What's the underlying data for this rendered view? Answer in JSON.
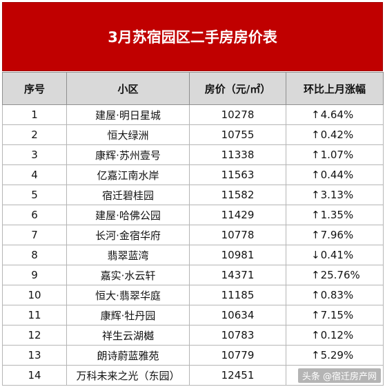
{
  "title": "3月苏宿园区二手房房价表",
  "headers": [
    "序号",
    "小区",
    "房价（元/㎡）",
    "环比上月涨幅"
  ],
  "rows": [
    {
      "no": "1",
      "name": "建屋·明日星城",
      "price": "10278",
      "arrow": "↑",
      "change": "4.64%",
      "direction": "up"
    },
    {
      "no": "2",
      "name": "恒大绿洲",
      "price": "10755",
      "arrow": "↑",
      "change": "0.42%",
      "direction": "up"
    },
    {
      "no": "3",
      "name": "康辉·苏州壹号",
      "price": "11338",
      "arrow": "↑",
      "change": "1.07%",
      "direction": "up"
    },
    {
      "no": "4",
      "name": "亿嘉江南水岸",
      "price": "11563",
      "arrow": "↑",
      "change": "0.44%",
      "direction": "up"
    },
    {
      "no": "5",
      "name": "宿迁碧桂园",
      "price": "11582",
      "arrow": "↑",
      "change": "3.13%",
      "direction": "up"
    },
    {
      "no": "6",
      "name": "建屋·哈佛公园",
      "price": "11429",
      "arrow": "↑",
      "change": "1.35%",
      "direction": "up"
    },
    {
      "no": "7",
      "name": "长河·金宿华府",
      "price": "10778",
      "arrow": "↑",
      "change": "7.96%",
      "direction": "up"
    },
    {
      "no": "8",
      "name": "翡翠蓝湾",
      "price": "10981",
      "arrow": "↓",
      "change": "0.41%",
      "direction": "down"
    },
    {
      "no": "9",
      "name": "嘉实·水云轩",
      "price": "14371",
      "arrow": "↑",
      "change": "25.76%",
      "direction": "up"
    },
    {
      "no": "10",
      "name": "恒大·翡翠华庭",
      "price": "11185",
      "arrow": "↑",
      "change": "0.83%",
      "direction": "up"
    },
    {
      "no": "11",
      "name": "康辉·牡丹园",
      "price": "10634",
      "arrow": "↑",
      "change": "7.15%",
      "direction": "up"
    },
    {
      "no": "12",
      "name": "祥生云湖樾",
      "price": "10783",
      "arrow": "↑",
      "change": "0.12%",
      "direction": "up"
    },
    {
      "no": "13",
      "name": "朗诗蔚蓝雅苑",
      "price": "10779",
      "arrow": "↑",
      "change": "5.29%",
      "direction": "up"
    },
    {
      "no": "14",
      "name": "万科未来之光（东园）",
      "price": "12451",
      "arrow": "",
      "change": "",
      "direction": ""
    }
  ],
  "watermark": "头条 @宿迁房产网",
  "colors": {
    "title_bg": "#c00000",
    "header_bg": "#d9d9d9",
    "up": "#e02020",
    "down": "#1f9a3a"
  }
}
